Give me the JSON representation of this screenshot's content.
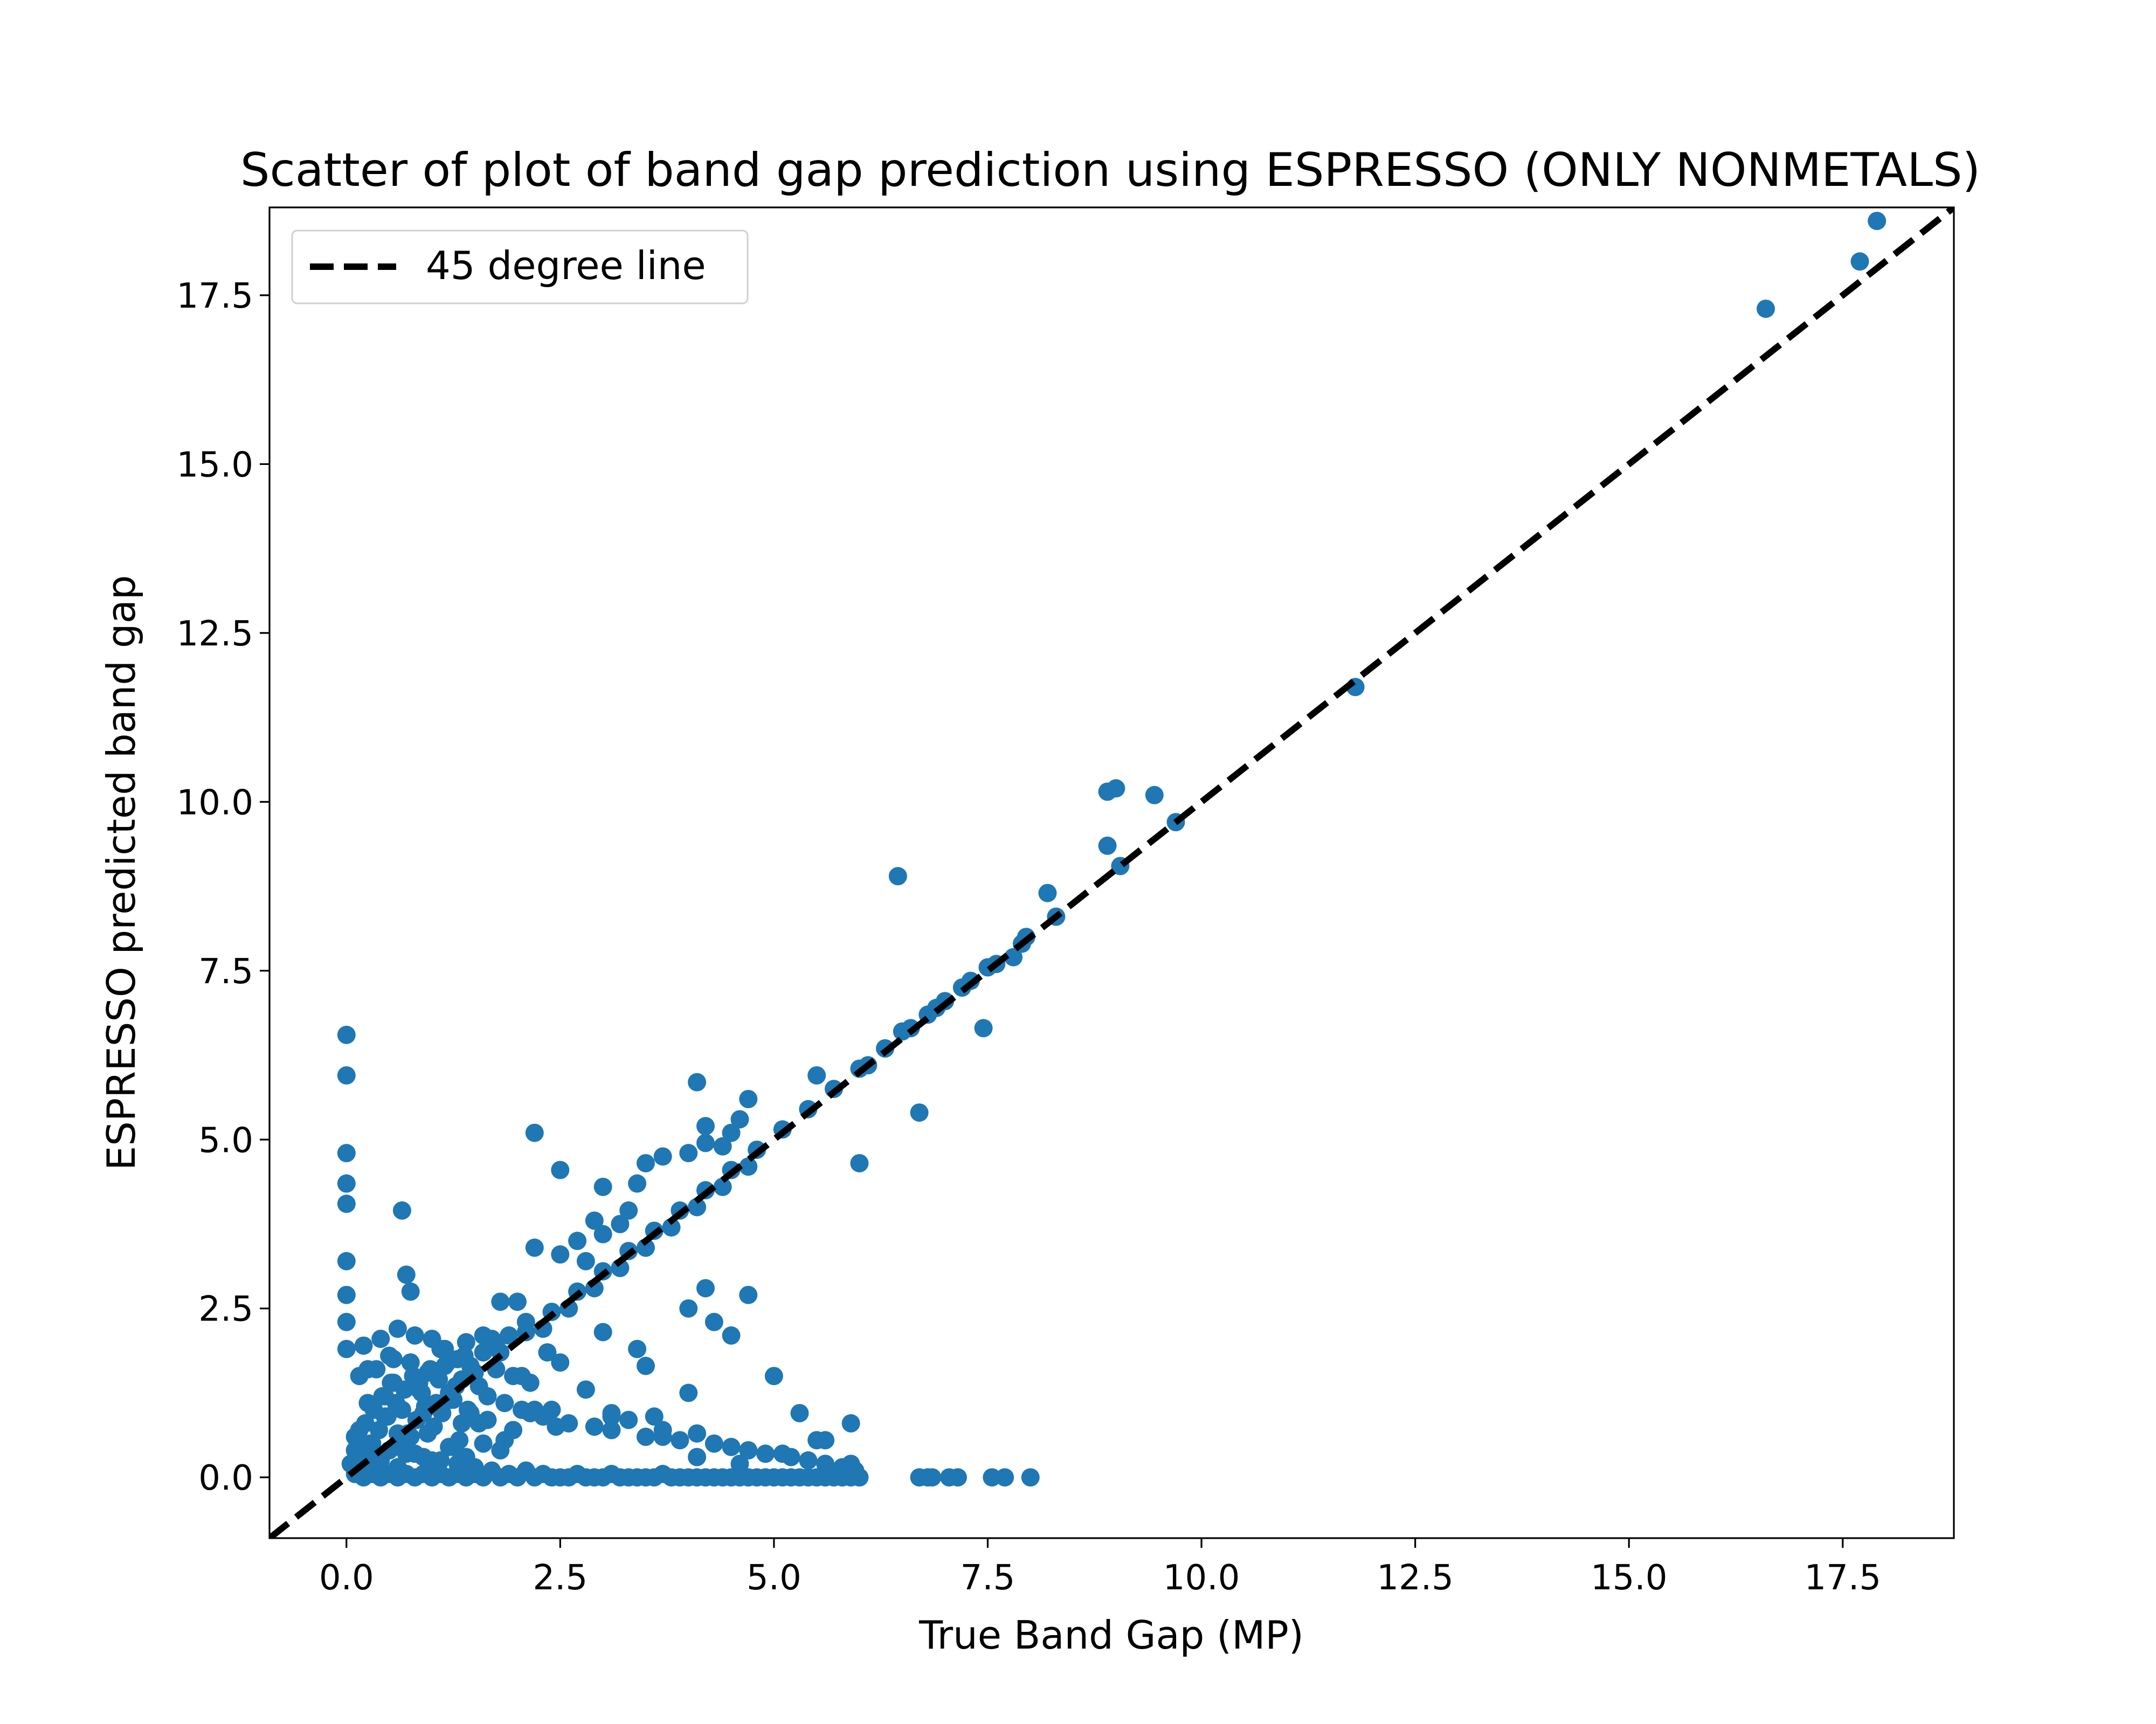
{
  "chart_data": {
    "type": "scatter",
    "title": "Scatter of plot of band gap prediction using ESPRESSO (ONLY NONMETALS)",
    "xlabel": "True Band Gap (MP)",
    "ylabel": "ESPRESSO predicted band gap",
    "xlim": [
      -0.9,
      18.8
    ],
    "ylim": [
      -0.9,
      18.8
    ],
    "xticks": [
      0.0,
      2.5,
      5.0,
      7.5,
      10.0,
      12.5,
      15.0,
      17.5
    ],
    "xtick_labels": [
      "0.0",
      "2.5",
      "5.0",
      "7.5",
      "10.0",
      "12.5",
      "15.0",
      "17.5"
    ],
    "yticks": [
      0.0,
      2.5,
      5.0,
      7.5,
      10.0,
      12.5,
      15.0,
      17.5
    ],
    "ytick_labels": [
      "0.0",
      "2.5",
      "5.0",
      "7.5",
      "10.0",
      "12.5",
      "15.0",
      "17.5"
    ],
    "grid": false,
    "legend_position": "top-left",
    "series": [
      {
        "kind": "points",
        "color": "#1f77b4",
        "x": [
          17.9,
          17.7,
          16.6,
          11.8,
          9.7,
          9.45,
          9.0,
          8.9,
          8.9,
          9.05,
          8.2,
          8.3,
          7.95,
          7.8,
          6.45,
          7.45,
          6.7,
          6.0,
          5.5,
          4.1,
          2.2,
          0.65,
          0.7,
          0.75,
          0.0,
          0.0,
          0.0,
          0.0,
          0.0,
          0.0,
          0.0,
          0.0,
          0.0,
          0.3,
          0.6,
          0.9,
          1.2,
          1.5,
          1.8,
          2.1,
          2.4,
          2.7,
          3.0,
          3.3,
          3.6,
          3.9,
          4.2,
          4.5,
          4.8,
          5.1,
          5.4,
          5.7,
          6.0,
          6.3,
          6.6,
          6.9,
          7.2,
          7.5,
          2.3,
          2.6,
          2.9,
          3.2,
          3.5,
          3.8,
          4.1,
          4.4,
          4.7,
          1.6,
          2.0,
          2.5,
          3.0,
          3.4,
          4.2,
          4.4,
          4.6,
          4.7,
          4.0,
          4.3,
          2.5,
          3.7,
          3.5,
          4.0,
          4.2,
          4.5,
          2.7,
          2.9,
          3.3,
          3.0,
          2.2,
          2.8,
          3.2,
          1.8,
          2.1,
          0.2,
          0.4,
          0.5,
          0.6,
          0.8,
          1.0,
          1.1,
          1.3,
          1.4,
          1.6,
          1.7,
          1.9,
          0.15,
          0.35,
          0.55,
          0.75,
          0.95,
          1.15,
          1.35,
          1.55,
          1.75,
          1.95,
          2.15,
          0.25,
          0.45,
          0.65,
          0.85,
          1.05,
          1.25,
          1.45,
          1.65,
          1.85,
          2.05,
          2.3,
          2.6,
          2.9,
          3.1,
          3.3,
          3.5,
          3.7,
          3.9,
          4.1,
          4.3,
          4.5,
          4.7,
          4.9,
          5.2,
          5.4,
          5.6,
          5.8,
          5.95,
          6.7,
          6.8,
          6.85,
          7.05,
          7.15,
          7.55,
          7.7,
          8.0,
          0.1,
          0.3,
          0.5,
          0.7,
          0.9,
          1.1,
          1.3,
          1.5,
          1.7,
          1.9,
          2.1,
          2.3,
          2.5,
          2.7,
          2.9,
          3.1,
          3.3,
          3.5,
          3.7,
          3.9,
          4.1,
          4.3,
          4.5,
          4.7,
          4.9,
          5.1,
          5.3,
          5.5,
          5.7,
          5.9,
          0.2,
          0.4,
          0.6,
          0.8,
          1.0,
          1.2,
          1.4,
          1.6,
          1.8,
          2.0,
          2.2,
          2.4,
          2.6,
          2.8,
          3.0,
          3.2,
          3.4,
          3.6,
          3.8,
          4.0,
          4.2,
          4.4,
          4.6,
          4.8,
          5.0,
          5.2,
          5.4,
          5.6,
          5.8,
          6.0,
          2.4,
          3.1,
          3.6,
          4.1,
          4.6,
          5.1,
          5.6,
          5.9,
          3.0,
          3.5,
          4.0,
          4.5,
          5.0,
          2.2,
          2.5,
          2.8,
          3.1,
          3.4,
          3.7,
          4.2,
          4.7,
          5.3,
          5.5,
          5.9,
          6.1,
          6.3,
          6.5,
          6.8,
          7.0,
          7.3,
          7.6,
          7.9,
          0.05,
          0.1,
          0.12,
          0.18,
          0.22,
          0.28,
          0.32,
          0.38,
          0.42,
          0.48,
          0.52,
          0.58,
          0.62,
          0.68,
          0.72,
          0.78,
          0.82,
          0.88,
          0.92,
          0.98,
          1.02,
          1.08,
          1.12,
          1.18,
          1.22,
          1.28,
          1.32,
          1.38,
          1.42,
          1.48,
          0.1,
          0.3,
          0.5,
          0.7,
          0.9,
          1.1,
          1.3,
          1.5,
          0.2,
          0.4,
          0.6,
          0.8,
          1.0,
          1.2,
          1.4,
          1.6,
          1.8,
          0.15,
          0.45,
          0.75,
          1.05,
          1.35,
          1.65,
          1.95,
          0.25,
          0.55,
          0.85,
          1.15,
          1.45,
          1.75,
          2.05,
          2.35,
          0.35,
          0.65,
          0.95,
          1.25,
          1.55,
          1.85,
          2.15,
          2.45
        ],
        "y": [
          18.6,
          18.0,
          17.3,
          11.7,
          9.7,
          10.1,
          10.2,
          10.15,
          9.35,
          9.05,
          8.65,
          8.3,
          8.0,
          7.7,
          8.9,
          6.65,
          5.4,
          4.65,
          5.95,
          5.85,
          5.1,
          3.95,
          3.0,
          2.75,
          6.55,
          5.95,
          4.8,
          4.35,
          4.05,
          3.2,
          2.7,
          2.3,
          1.9,
          0.35,
          0.65,
          0.95,
          1.25,
          1.55,
          1.85,
          2.15,
          2.45,
          2.75,
          3.05,
          3.35,
          3.65,
          3.95,
          4.25,
          4.55,
          4.85,
          5.15,
          5.45,
          5.75,
          6.05,
          6.35,
          6.65,
          6.95,
          7.25,
          7.55,
          2.2,
          2.5,
          2.8,
          3.1,
          3.4,
          3.7,
          4.0,
          4.3,
          4.6,
          2.1,
          2.6,
          3.3,
          3.6,
          4.35,
          5.2,
          4.9,
          5.3,
          5.6,
          2.5,
          2.3,
          4.55,
          4.75,
          4.65,
          4.8,
          4.95,
          5.1,
          3.5,
          3.8,
          3.95,
          4.3,
          3.4,
          3.2,
          3.75,
          2.6,
          2.3,
          1.95,
          2.05,
          1.8,
          2.2,
          2.1,
          2.05,
          1.9,
          1.75,
          2.0,
          1.85,
          2.05,
          2.1,
          1.5,
          1.6,
          1.4,
          1.7,
          1.55,
          1.65,
          1.45,
          1.35,
          1.6,
          1.5,
          1.4,
          1.1,
          1.2,
          1.0,
          1.3,
          1.05,
          1.15,
          0.95,
          0.85,
          1.1,
          1.0,
          0.9,
          0.8,
          0.75,
          0.7,
          0.85,
          0.6,
          0.7,
          0.55,
          0.65,
          0.5,
          0.45,
          0.4,
          0.35,
          0.3,
          0.25,
          0.2,
          0.15,
          0.1,
          0.0,
          0.0,
          0.0,
          0.0,
          0.0,
          0.0,
          0.0,
          0.0,
          0.6,
          0.5,
          0.4,
          0.35,
          0.3,
          0.25,
          0.2,
          0.15,
          0.1,
          0.05,
          0.1,
          0.05,
          0.0,
          0.05,
          0.0,
          0.05,
          0.0,
          0.0,
          0.05,
          0.0,
          0.0,
          0.0,
          0.0,
          0.0,
          0.0,
          0.0,
          0.0,
          0.0,
          0.0,
          0.0,
          0.0,
          0.0,
          0.0,
          0.0,
          0.0,
          0.0,
          0.0,
          0.0,
          0.0,
          0.0,
          0.0,
          0.0,
          0.0,
          0.0,
          0.0,
          0.0,
          0.0,
          0.0,
          0.0,
          0.0,
          0.0,
          0.0,
          0.0,
          0.0,
          0.0,
          0.0,
          0.0,
          0.0,
          0.0,
          0.0,
          1.0,
          0.95,
          0.9,
          0.3,
          0.2,
          0.35,
          0.55,
          0.2,
          2.15,
          1.65,
          1.25,
          2.1,
          1.5,
          1.0,
          1.7,
          1.3,
          0.9,
          1.9,
          0.6,
          2.8,
          2.7,
          0.95,
          0.55,
          0.8,
          6.1,
          6.35,
          6.6,
          6.85,
          7.05,
          7.35,
          7.6,
          7.9,
          0.2,
          0.4,
          0.6,
          0.3,
          0.8,
          0.5,
          1.0,
          0.7,
          1.2,
          0.9,
          1.4,
          1.1,
          0.45,
          1.3,
          0.65,
          1.5,
          0.85,
          1.25,
          1.05,
          1.6,
          0.75,
          1.45,
          0.95,
          1.7,
          1.15,
          1.35,
          0.55,
          1.8,
          1.0,
          1.55,
          0.05,
          0.05,
          0.05,
          0.05,
          0.05,
          0.05,
          0.05,
          0.05,
          0.15,
          0.25,
          0.15,
          0.35,
          0.25,
          0.45,
          0.3,
          0.5,
          0.4,
          0.7,
          0.9,
          0.6,
          1.1,
          0.8,
          1.2,
          0.7,
          1.6,
          1.75,
          1.4,
          1.9,
          1.65,
          2.0,
          1.5,
          1.85,
          0.3,
          0.5,
          0.65,
          0.45,
          0.8,
          0.55,
          0.95,
          0.75
        ]
      },
      {
        "kind": "reference_line",
        "name": "45 degree line",
        "style": "dashed",
        "color": "#000000",
        "x": [
          -0.9,
          18.8
        ],
        "y": [
          -0.9,
          18.8
        ]
      }
    ]
  }
}
